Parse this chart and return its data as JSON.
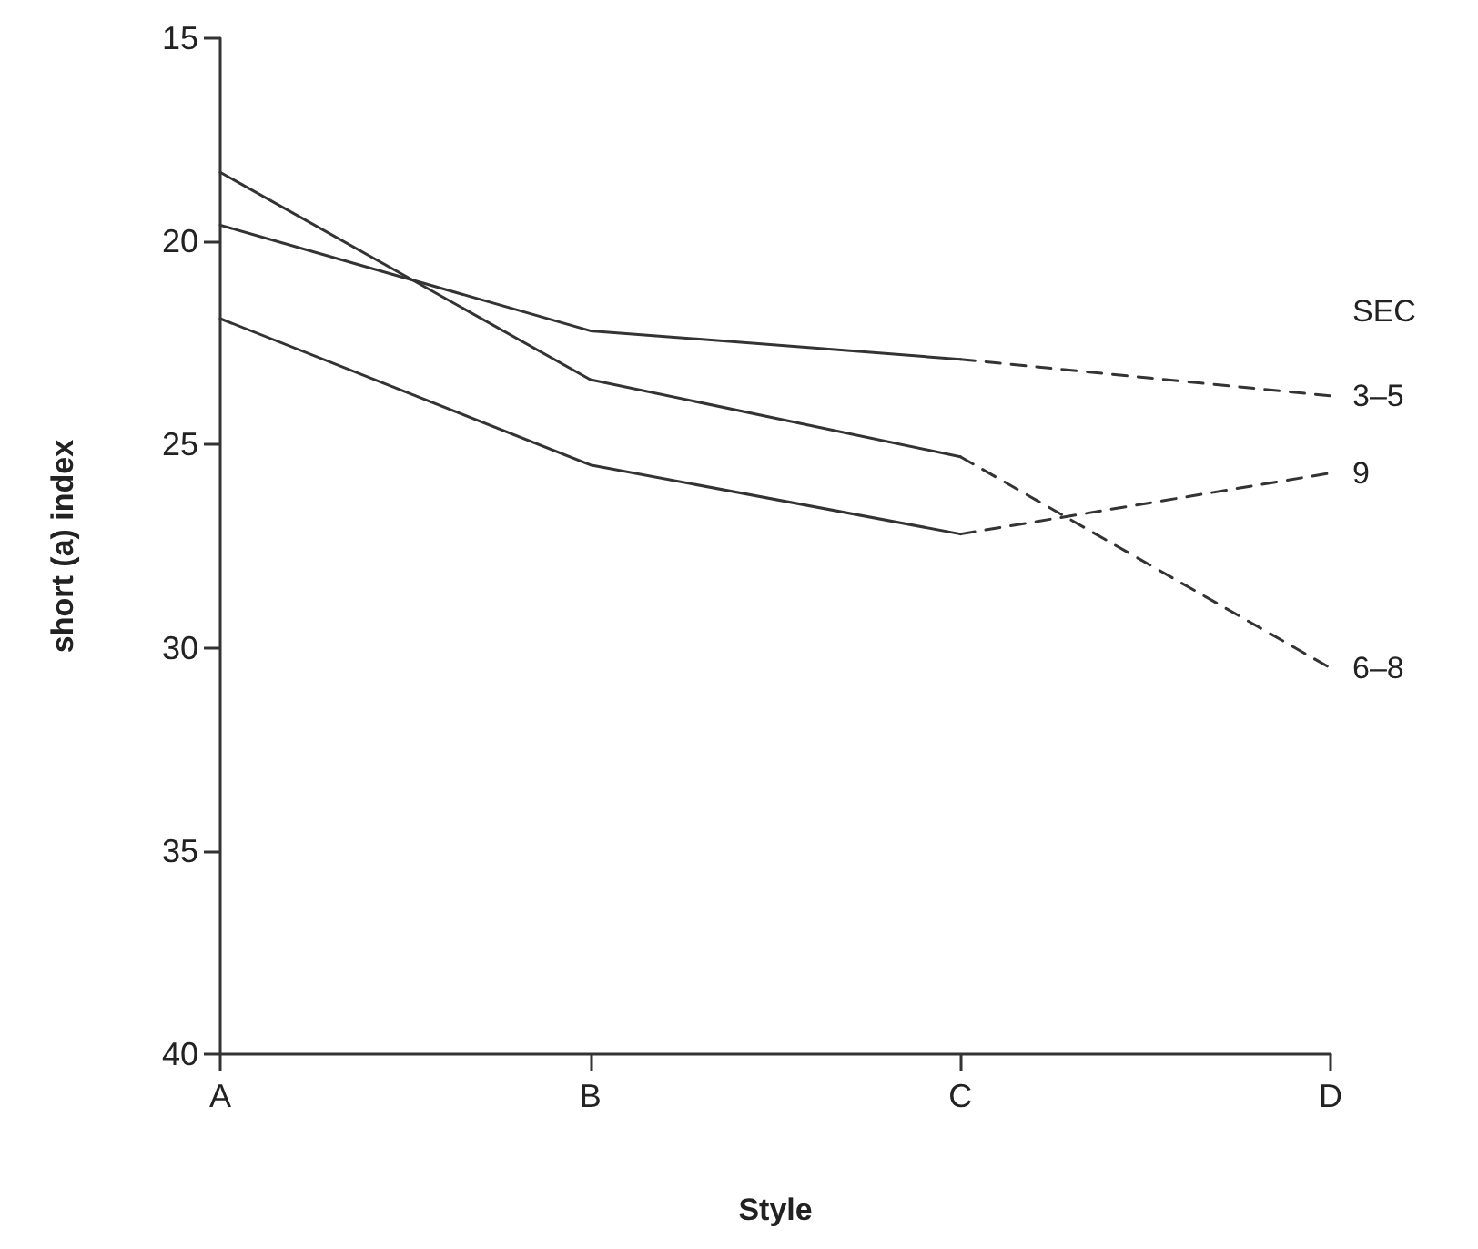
{
  "chart_data": {
    "type": "line",
    "xlabel": "Style",
    "ylabel": "short (a) index",
    "legend_title": "SEC",
    "categories": [
      "A",
      "B",
      "C",
      "D"
    ],
    "series": [
      {
        "color": "#333333",
        "line_style": "solid",
        "values": [
          19.6,
          22.2,
          22.9,
          null
        ]
      },
      {
        "name": "3–5",
        "color": "#333333",
        "line_style": "dashed",
        "values": [
          null,
          null,
          22.9,
          23.8
        ]
      },
      {
        "color": "#333333",
        "line_style": "solid",
        "values": [
          21.9,
          25.5,
          27.2,
          null
        ]
      },
      {
        "name": "9",
        "color": "#333333",
        "line_style": "dashed",
        "values": [
          null,
          null,
          27.2,
          25.7
        ]
      },
      {
        "color": "#333333",
        "line_style": "solid",
        "values": [
          18.3,
          23.4,
          25.3,
          null
        ]
      },
      {
        "name": "6–8",
        "color": "#333333",
        "line_style": "dashed",
        "values": [
          null,
          null,
          25.3,
          30.5
        ]
      }
    ],
    "ylim": [
      40,
      15
    ],
    "yticks": [
      15,
      20,
      25,
      30,
      35,
      40
    ],
    "grid": false,
    "legend": false,
    "marker": "none"
  }
}
